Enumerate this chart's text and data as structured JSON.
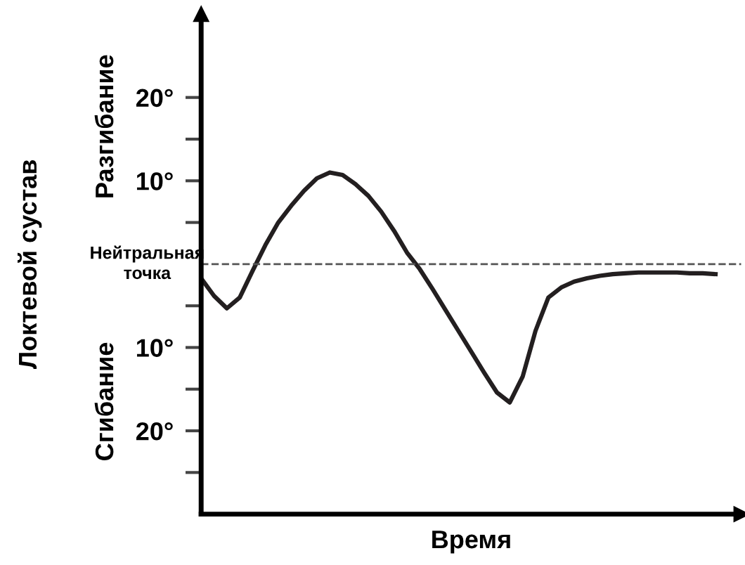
{
  "chart_data": {
    "type": "line",
    "xlabel": "Время",
    "ylabel": "Локтевой сустав",
    "annotations": [
      "Разгибание",
      "Сгибание"
    ],
    "categories": [
      null,
      null,
      null,
      null,
      null,
      null,
      null,
      null,
      null,
      null,
      null,
      null,
      null,
      null,
      null,
      null,
      null,
      null,
      null,
      null,
      null,
      null,
      null,
      null,
      null,
      null,
      null,
      null,
      null,
      null,
      null,
      null,
      null,
      null,
      null,
      null,
      null,
      null,
      null,
      null,
      null
    ],
    "series": [
      {
        "color": "#231f20",
        "values": [
          -1.7,
          -3.8,
          -5.3,
          -4.0,
          -0.8,
          2.3,
          5.0,
          7.0,
          8.8,
          10.3,
          11.0,
          10.7,
          9.6,
          8.2,
          6.3,
          4.0,
          1.4,
          -0.6,
          -3.0,
          -5.5,
          -8.0,
          -10.5,
          -13.0,
          -15.4,
          -16.6,
          -13.5,
          -8.0,
          -4.0,
          -2.8,
          -2.1,
          -1.7,
          -1.4,
          -1.2,
          -1.1,
          -1.0,
          -1.0,
          -1.0,
          -1.0,
          -1.1,
          -1.1,
          -1.2
        ]
      }
    ],
    "ylim": [
      -30,
      30
    ],
    "yticks": [
      {
        "value": 20,
        "label": "20°"
      },
      {
        "value": 15,
        "label": null
      },
      {
        "value": 10,
        "label": "10°"
      },
      {
        "value": 5,
        "label": null
      },
      {
        "value": -5,
        "label": null
      },
      {
        "value": -10,
        "label": "10°"
      },
      {
        "value": -15,
        "label": null
      },
      {
        "value": -20,
        "label": "20°"
      },
      {
        "value": -25,
        "label": null
      }
    ],
    "ref_lines": [
      {
        "axis": "y",
        "value": 0,
        "label": "Нейтральная точка",
        "line_style": "dashed",
        "color": "#555555"
      }
    ],
    "tick_labels": "y",
    "marker": "none",
    "line_style": "solid",
    "grid": false,
    "legend": false
  }
}
